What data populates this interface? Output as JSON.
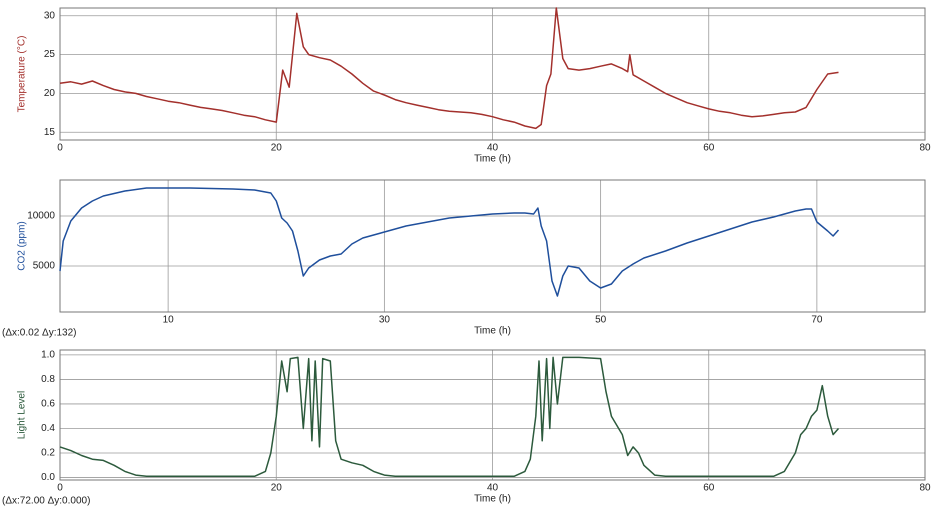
{
  "chart_data": [
    {
      "type": "line",
      "y_label": "Temperature (°C)",
      "x_label": "Time (h)",
      "color": "#a3302c",
      "xlim": [
        0,
        80
      ],
      "xticks": [
        0,
        20,
        40,
        60,
        80
      ],
      "ylim": [
        14,
        31
      ],
      "yticks": [
        15,
        20,
        25,
        30
      ],
      "grid": true,
      "x": [
        0,
        1,
        2,
        3,
        4,
        5,
        6,
        7,
        8,
        9,
        10,
        11,
        12,
        13,
        14,
        15,
        16,
        17,
        18,
        19,
        20,
        20.6,
        21.2,
        21.9,
        22.5,
        23,
        24,
        25,
        26,
        27,
        28,
        29,
        30,
        31,
        32,
        33,
        34,
        35,
        36,
        37,
        38,
        39,
        40,
        41,
        42,
        43,
        44,
        44.5,
        45,
        45.4,
        45.9,
        46.5,
        47,
        48,
        49,
        50,
        51,
        52,
        52.5,
        52.7,
        53,
        54,
        55,
        56,
        57,
        58,
        59,
        60,
        61,
        62,
        63,
        64,
        65,
        66,
        67,
        68,
        69,
        70,
        71,
        72
      ],
      "values": [
        21.3,
        21.5,
        21.2,
        21.6,
        21.0,
        20.5,
        20.2,
        20.0,
        19.6,
        19.3,
        19.0,
        18.8,
        18.5,
        18.2,
        18.0,
        17.8,
        17.5,
        17.2,
        17.0,
        16.6,
        16.3,
        23.0,
        20.8,
        30.3,
        26.0,
        25.0,
        24.6,
        24.3,
        23.5,
        22.5,
        21.3,
        20.3,
        19.8,
        19.2,
        18.8,
        18.5,
        18.2,
        17.9,
        17.7,
        17.6,
        17.5,
        17.3,
        17.0,
        16.6,
        16.3,
        15.8,
        15.5,
        16.0,
        21.0,
        22.5,
        31.0,
        24.5,
        23.2,
        23.0,
        23.2,
        23.5,
        23.8,
        23.2,
        22.8,
        25.0,
        22.4,
        21.6,
        20.8,
        20.0,
        19.4,
        18.8,
        18.4,
        18.0,
        17.7,
        17.5,
        17.2,
        17.0,
        17.1,
        17.3,
        17.5,
        17.6,
        18.2,
        20.5,
        22.5,
        22.7
      ]
    },
    {
      "type": "line",
      "y_label": "CO2 (ppm)",
      "x_label": "Time (h)",
      "color": "#1f4f9c",
      "annotation": "(Δx:0.02 Δy:132)",
      "xlim": [
        0,
        80
      ],
      "xticks": [
        10,
        30,
        50,
        70
      ],
      "ylim": [
        400,
        13600
      ],
      "yticks": [
        5000,
        10000
      ],
      "grid": true,
      "x": [
        0,
        0.3,
        1,
        2,
        3,
        4,
        6,
        8,
        12,
        16,
        18,
        19.5,
        20,
        20.5,
        21,
        21.5,
        22,
        22.5,
        23,
        24,
        25,
        26,
        27,
        28,
        30,
        32,
        34,
        36,
        38,
        40,
        42,
        43,
        43.8,
        44.2,
        44.5,
        45,
        45.5,
        46,
        46.5,
        47,
        48,
        49,
        50,
        51,
        52,
        53,
        54,
        56,
        58,
        60,
        62,
        64,
        66,
        68,
        69,
        69.5,
        70,
        71,
        71.5,
        72
      ],
      "values": [
        4500,
        7500,
        9500,
        10800,
        11500,
        12000,
        12500,
        12800,
        12800,
        12700,
        12600,
        12300,
        11500,
        9800,
        9300,
        8500,
        6500,
        4000,
        4800,
        5600,
        6000,
        6200,
        7200,
        7800,
        8400,
        9000,
        9400,
        9800,
        10000,
        10200,
        10300,
        10300,
        10200,
        10800,
        9000,
        7500,
        3500,
        2000,
        4000,
        5000,
        4800,
        3500,
        2800,
        3200,
        4500,
        5200,
        5800,
        6500,
        7300,
        8000,
        8700,
        9400,
        9900,
        10500,
        10700,
        10700,
        9400,
        8500,
        8000,
        8600
      ]
    },
    {
      "type": "line",
      "y_label": "Light Level",
      "x_label": "Time (h)",
      "color": "#2c5a3c",
      "annotation": "(Δx:72.00 Δy:0.000)",
      "xlim": [
        0,
        80
      ],
      "xticks": [
        0,
        20,
        40,
        60,
        80
      ],
      "ylim": [
        -0.02,
        1.04
      ],
      "yticks": [
        {
          "value": 0,
          "label": "0.0"
        },
        {
          "value": 0.2,
          "label": "0.2"
        },
        {
          "value": 0.4,
          "label": "0.4"
        },
        {
          "value": 0.6,
          "label": "0.6"
        },
        {
          "value": 0.8,
          "label": "0.8"
        },
        {
          "value": 1,
          "label": "1.0"
        }
      ],
      "grid": true,
      "x": [
        0,
        1,
        2,
        3,
        4,
        5,
        6,
        7,
        8,
        10,
        18,
        19,
        19.5,
        20,
        20.5,
        21,
        21.3,
        22,
        22.5,
        23,
        23.3,
        23.6,
        24,
        24.3,
        25,
        25.5,
        26,
        27,
        28,
        29,
        30,
        31,
        42,
        43,
        43.5,
        44,
        44.3,
        44.6,
        45,
        45.3,
        45.6,
        46,
        46.5,
        48,
        50,
        50.5,
        51,
        52,
        52.5,
        53,
        53.5,
        54,
        55,
        56,
        66,
        67,
        68,
        68.5,
        69,
        69.5,
        70,
        70.5,
        71,
        71.5,
        72
      ],
      "values": [
        0.25,
        0.22,
        0.18,
        0.15,
        0.14,
        0.1,
        0.05,
        0.02,
        0.01,
        0.01,
        0.01,
        0.05,
        0.2,
        0.5,
        0.95,
        0.7,
        0.97,
        0.98,
        0.4,
        0.97,
        0.3,
        0.95,
        0.25,
        0.97,
        0.95,
        0.3,
        0.15,
        0.12,
        0.1,
        0.05,
        0.02,
        0.01,
        0.01,
        0.05,
        0.15,
        0.5,
        0.95,
        0.3,
        0.97,
        0.4,
        0.98,
        0.6,
        0.98,
        0.98,
        0.97,
        0.7,
        0.5,
        0.35,
        0.18,
        0.25,
        0.2,
        0.1,
        0.02,
        0.01,
        0.01,
        0.05,
        0.2,
        0.35,
        0.4,
        0.5,
        0.55,
        0.75,
        0.5,
        0.35,
        0.4
      ]
    }
  ]
}
